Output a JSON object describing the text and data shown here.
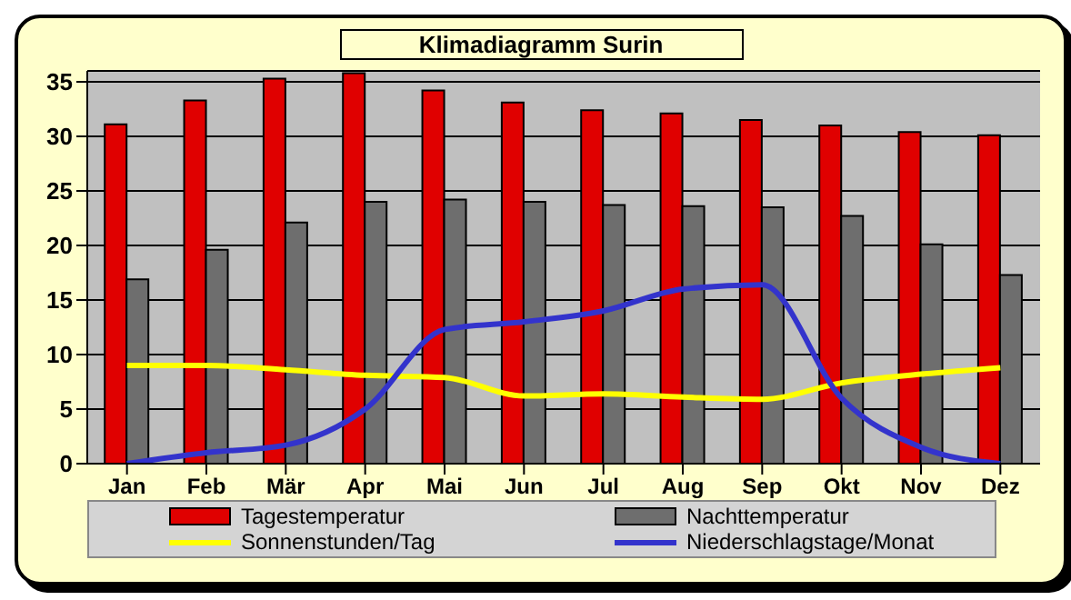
{
  "chart_data": {
    "type": "bar",
    "title": "Klimadiagramm Surin",
    "categories": [
      "Jan",
      "Feb",
      "Mär",
      "Apr",
      "Mai",
      "Jun",
      "Jul",
      "Aug",
      "Sep",
      "Okt",
      "Nov",
      "Dez"
    ],
    "series": [
      {
        "name": "Tagestemperatur",
        "color": "#e00000",
        "values": [
          31.1,
          33.3,
          35.3,
          35.8,
          34.2,
          33.1,
          32.4,
          32.1,
          31.5,
          31.0,
          30.4,
          30.1
        ]
      },
      {
        "name": "Nachttemperatur",
        "color": "#6e6e6e",
        "values": [
          16.9,
          19.6,
          22.1,
          24.0,
          24.2,
          24.0,
          23.7,
          23.6,
          23.5,
          22.7,
          20.1,
          17.3
        ]
      },
      {
        "name": "Sonnenstunden/Tag",
        "type": "line",
        "color": "#ffff00",
        "values": [
          9.0,
          9.0,
          8.6,
          8.1,
          7.9,
          6.2,
          6.4,
          6.1,
          5.9,
          7.4,
          8.2,
          8.8
        ]
      },
      {
        "name": "Niederschlagstage/Monat",
        "type": "line",
        "color": "#3333cc",
        "values": [
          0,
          1.0,
          1.7,
          5.0,
          12.3,
          13.0,
          14.0,
          16.0,
          16.4,
          6.0,
          1.5,
          0
        ]
      }
    ],
    "ylim": [
      0,
      36
    ],
    "yticks": [
      0,
      5,
      10,
      15,
      20,
      25,
      30,
      35
    ],
    "grid": "y",
    "legend": "bottom",
    "marker": "none"
  }
}
